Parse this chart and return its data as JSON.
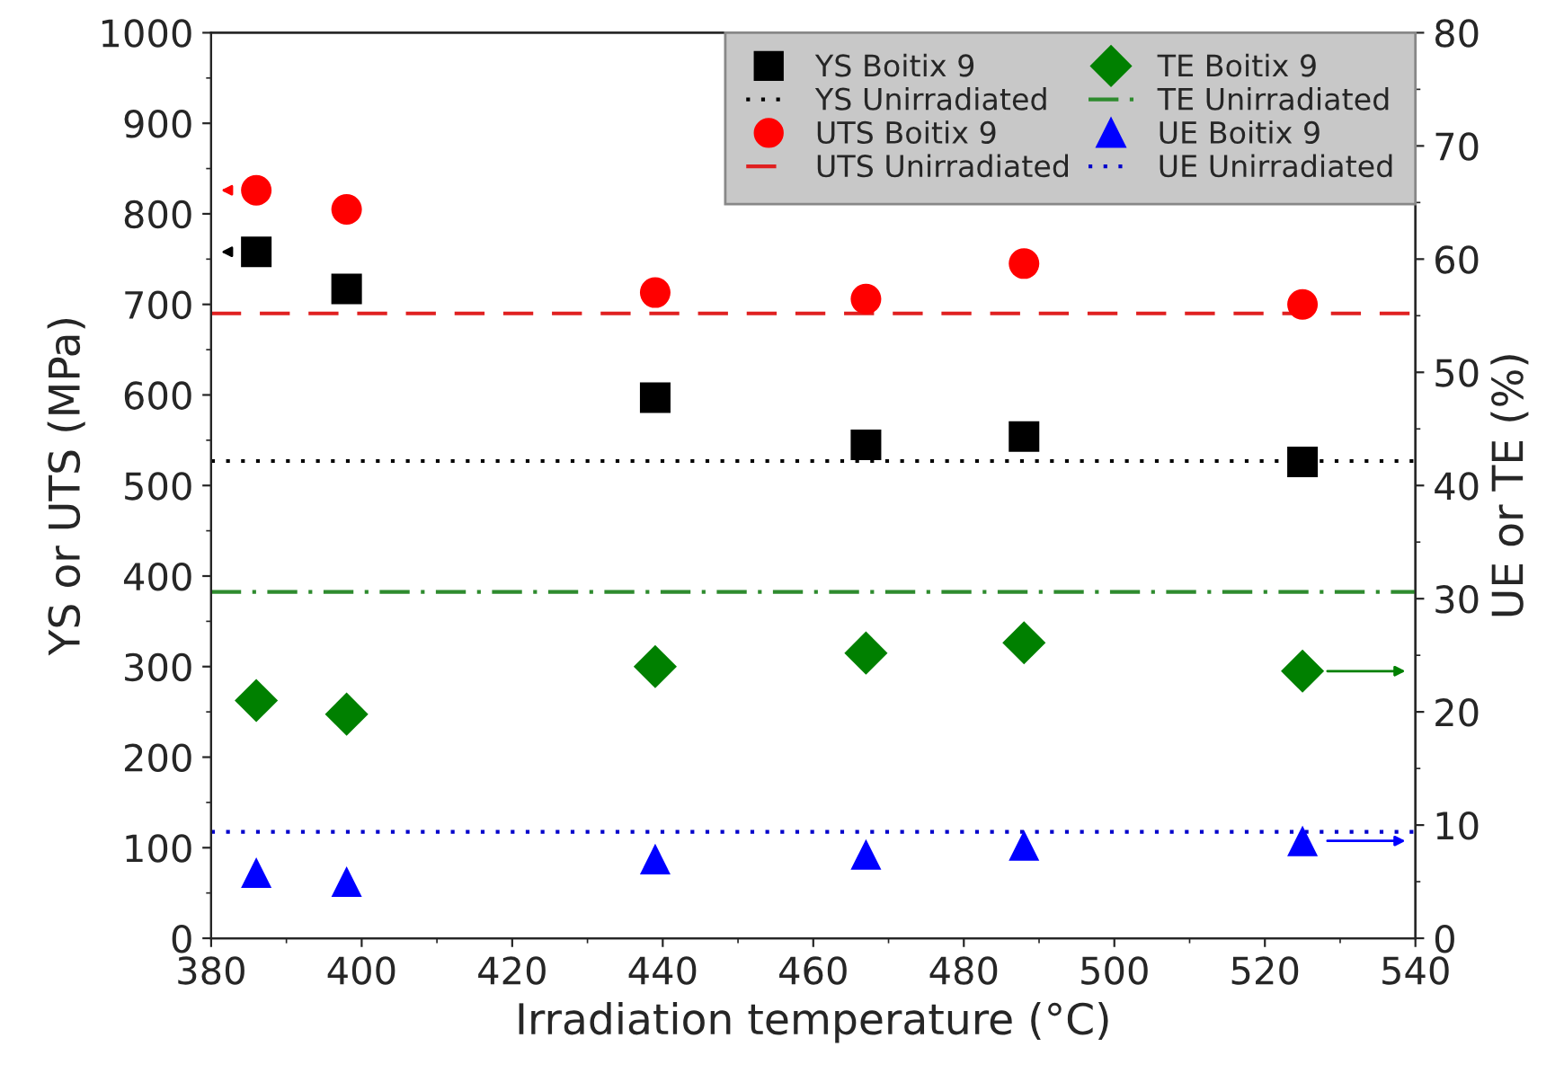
{
  "chart_data": {
    "type": "scatter",
    "xlabel": "Irradiation temperature (°C)",
    "ylabel": "YS or UTS (MPa)",
    "y2label": "UE or TE (%)",
    "x": [
      386,
      398,
      439,
      467,
      488,
      525
    ],
    "series": [
      {
        "name": "YS Boitix 9",
        "color": "#000000",
        "marker": "square",
        "values": [
          758,
          717,
          597,
          545,
          554,
          526
        ]
      },
      {
        "name": "UTS Boitix 9",
        "color": "#ff0000",
        "marker": "circle",
        "values": [
          826,
          805,
          713,
          706,
          745,
          700
        ]
      },
      {
        "name": "TE Boitix 9",
        "color": "#008000",
        "marker": "diamond",
        "axis": "y2",
        "values": [
          21.0,
          19.8,
          24.0,
          25.2,
          26.1,
          23.6
        ]
      },
      {
        "name": "UE Boitix 9",
        "color": "#0000ff",
        "marker": "triangle",
        "axis": "y2",
        "values": [
          5.8,
          5.0,
          7.0,
          7.4,
          8.2,
          8.6
        ]
      }
    ],
    "ref_lines": [
      {
        "axis": "y",
        "value": 527,
        "label": "YS Unirradiated",
        "color": "#000000",
        "line_style": "dotted"
      },
      {
        "axis": "y2",
        "value": 30.6,
        "label": "TE Unirradiated",
        "color": "#2e8b2e",
        "line_style": "dashdot"
      },
      {
        "axis": "y",
        "value": 690,
        "label": "UTS Unirradiated",
        "color": "#e02020",
        "line_style": "dashed"
      },
      {
        "axis": "y2",
        "value": 9.4,
        "label": "UE Unirradiated",
        "color": "#0000cc",
        "line_style": "dotted"
      }
    ],
    "xlim": [
      380,
      540
    ],
    "xticks": [
      380,
      400,
      420,
      440,
      460,
      480,
      500,
      520,
      540
    ],
    "ylim": [
      0,
      1000
    ],
    "yticks": [
      0,
      100,
      200,
      300,
      400,
      500,
      600,
      700,
      800,
      900,
      1000
    ],
    "y2lim": [
      0,
      80
    ],
    "y2ticks": [
      0,
      10,
      20,
      30,
      40,
      50,
      60,
      70,
      80
    ],
    "legend": "top right",
    "grid": false
  }
}
